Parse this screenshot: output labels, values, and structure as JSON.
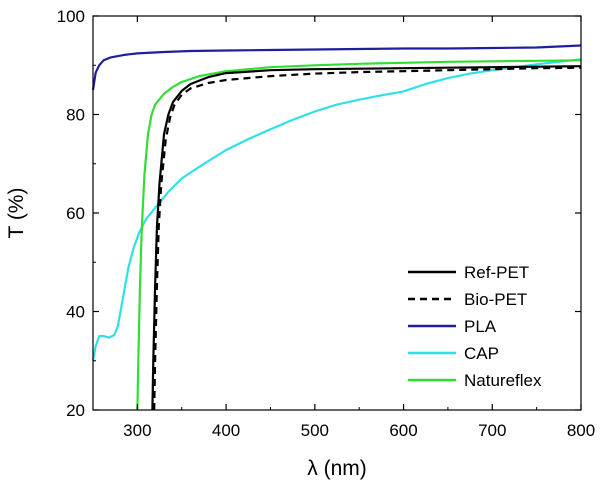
{
  "chart_data": {
    "type": "line",
    "xlabel": "λ (nm)",
    "ylabel": "T (%)",
    "xlim": [
      250,
      800
    ],
    "ylim": [
      20,
      100
    ],
    "xticks": [
      300,
      400,
      500,
      600,
      700,
      800
    ],
    "yticks": [
      20,
      40,
      60,
      80,
      100
    ],
    "grid": false,
    "legend_position": "bottom-right",
    "series": [
      {
        "name": "Ref-PET",
        "color": "#000000",
        "dash": "solid",
        "points": [
          [
            317,
            20
          ],
          [
            318,
            30
          ],
          [
            320,
            45
          ],
          [
            322,
            57
          ],
          [
            325,
            66
          ],
          [
            330,
            76
          ],
          [
            335,
            80
          ],
          [
            340,
            82.5
          ],
          [
            350,
            84.8
          ],
          [
            360,
            86.2
          ],
          [
            380,
            87.6
          ],
          [
            400,
            88.4
          ],
          [
            450,
            89.0
          ],
          [
            500,
            89.2
          ],
          [
            550,
            89.3
          ],
          [
            600,
            89.4
          ],
          [
            650,
            89.5
          ],
          [
            700,
            89.6
          ],
          [
            750,
            89.7
          ],
          [
            800,
            89.8
          ]
        ]
      },
      {
        "name": "Bio-PET",
        "color": "#000000",
        "dash": "dashed",
        "points": [
          [
            319,
            20
          ],
          [
            320,
            30
          ],
          [
            322,
            45
          ],
          [
            324,
            57
          ],
          [
            327,
            66
          ],
          [
            332,
            75
          ],
          [
            337,
            79.5
          ],
          [
            342,
            82
          ],
          [
            350,
            84
          ],
          [
            360,
            85.3
          ],
          [
            380,
            86.4
          ],
          [
            400,
            87.0
          ],
          [
            450,
            87.8
          ],
          [
            500,
            88.3
          ],
          [
            550,
            88.6
          ],
          [
            600,
            88.8
          ],
          [
            650,
            89.0
          ],
          [
            700,
            89.2
          ],
          [
            750,
            89.4
          ],
          [
            800,
            89.5
          ]
        ]
      },
      {
        "name": "PLA",
        "color": "#1f1f9e",
        "dash": "solid",
        "points": [
          [
            250,
            85
          ],
          [
            253,
            88.5
          ],
          [
            257,
            90
          ],
          [
            262,
            91
          ],
          [
            270,
            91.6
          ],
          [
            285,
            92.1
          ],
          [
            300,
            92.4
          ],
          [
            330,
            92.7
          ],
          [
            360,
            92.9
          ],
          [
            400,
            93.0
          ],
          [
            450,
            93.1
          ],
          [
            500,
            93.2
          ],
          [
            550,
            93.3
          ],
          [
            600,
            93.4
          ],
          [
            650,
            93.4
          ],
          [
            700,
            93.5
          ],
          [
            750,
            93.6
          ],
          [
            800,
            94.0
          ]
        ]
      },
      {
        "name": "CAP",
        "color": "#30e0e8",
        "dash": "solid",
        "points": [
          [
            250,
            30
          ],
          [
            253,
            33
          ],
          [
            257,
            35
          ],
          [
            262,
            35
          ],
          [
            268,
            34.7
          ],
          [
            274,
            35.2
          ],
          [
            278,
            37
          ],
          [
            282,
            41
          ],
          [
            286,
            45
          ],
          [
            290,
            49
          ],
          [
            296,
            53
          ],
          [
            302,
            56
          ],
          [
            310,
            58.8
          ],
          [
            320,
            61
          ],
          [
            335,
            64.3
          ],
          [
            350,
            67
          ],
          [
            375,
            70
          ],
          [
            400,
            72.8
          ],
          [
            425,
            75
          ],
          [
            450,
            77
          ],
          [
            475,
            78.9
          ],
          [
            500,
            80.6
          ],
          [
            525,
            82
          ],
          [
            550,
            83
          ],
          [
            575,
            83.9
          ],
          [
            600,
            84.7
          ],
          [
            625,
            86.2
          ],
          [
            650,
            87.4
          ],
          [
            675,
            88.3
          ],
          [
            700,
            89.0
          ],
          [
            750,
            90.2
          ],
          [
            800,
            91.2
          ]
        ]
      },
      {
        "name": "Natureflex",
        "color": "#33dd33",
        "dash": "solid",
        "points": [
          [
            300,
            20
          ],
          [
            301,
            30
          ],
          [
            303,
            45
          ],
          [
            305,
            57
          ],
          [
            308,
            68
          ],
          [
            312,
            76
          ],
          [
            316,
            80
          ],
          [
            320,
            82
          ],
          [
            330,
            84.2
          ],
          [
            340,
            85.6
          ],
          [
            350,
            86.6
          ],
          [
            370,
            87.8
          ],
          [
            400,
            88.8
          ],
          [
            450,
            89.6
          ],
          [
            500,
            90.0
          ],
          [
            550,
            90.3
          ],
          [
            600,
            90.5
          ],
          [
            650,
            90.7
          ],
          [
            700,
            90.8
          ],
          [
            750,
            90.9
          ],
          [
            800,
            91.0
          ]
        ]
      }
    ]
  }
}
